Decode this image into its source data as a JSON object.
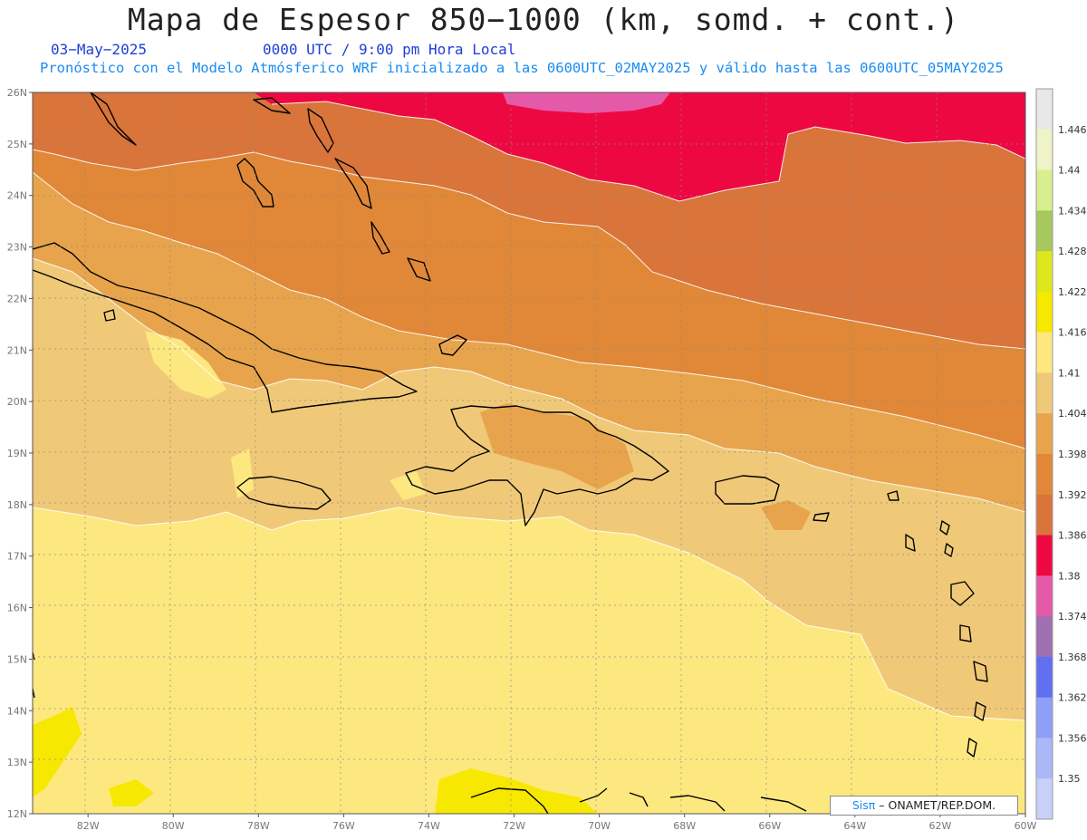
{
  "header": {
    "title": "Mapa de Espesor 850−1000 (km, somd. + cont.)",
    "date": "03−May−2025",
    "time": "0000 UTC / 9:00 pm Hora Local",
    "subtitle": "Pronóstico con el Modelo Atmósferico WRF inicializado a las 0600UTC_02MAY2025 y válido hasta las  0600UTC_05MAY2025"
  },
  "map": {
    "lat_labels": [
      "26N",
      "25N",
      "24N",
      "23N",
      "22N",
      "21N",
      "20N",
      "19N",
      "18N",
      "17N",
      "16N",
      "15N",
      "14N",
      "13N",
      "12N"
    ],
    "lon_labels": [
      "82W",
      "80W",
      "78W",
      "76W",
      "74W",
      "72W",
      "70W",
      "68W",
      "66W",
      "64W",
      "62W",
      "60W"
    ],
    "lat_range": [
      12,
      26
    ],
    "lon_range": [
      -83.3,
      -60
    ],
    "grid": true
  },
  "colorbar": {
    "levels": [
      "1.446",
      "1.44",
      "1.434",
      "1.428",
      "1.422",
      "1.416",
      "1.41",
      "1.404",
      "1.398",
      "1.392",
      "1.386",
      "1.38",
      "1.374",
      "1.368",
      "1.362",
      "1.356",
      "1.35"
    ],
    "colors": [
      "#e8e8e8",
      "#eef3c8",
      "#d9ef8f",
      "#a6c85c",
      "#dde81c",
      "#f6e800",
      "#fde880",
      "#f0c978",
      "#e8a44c",
      "#e08838",
      "#d9743a",
      "#ee0842",
      "#e55aa8",
      "#9e70b0",
      "#6070f0",
      "#8f9ff8",
      "#aab8f8",
      "#c8d0f8"
    ]
  },
  "credit": {
    "sis": "Sisπ",
    "org": "– ONAMET/REP.DOM."
  }
}
